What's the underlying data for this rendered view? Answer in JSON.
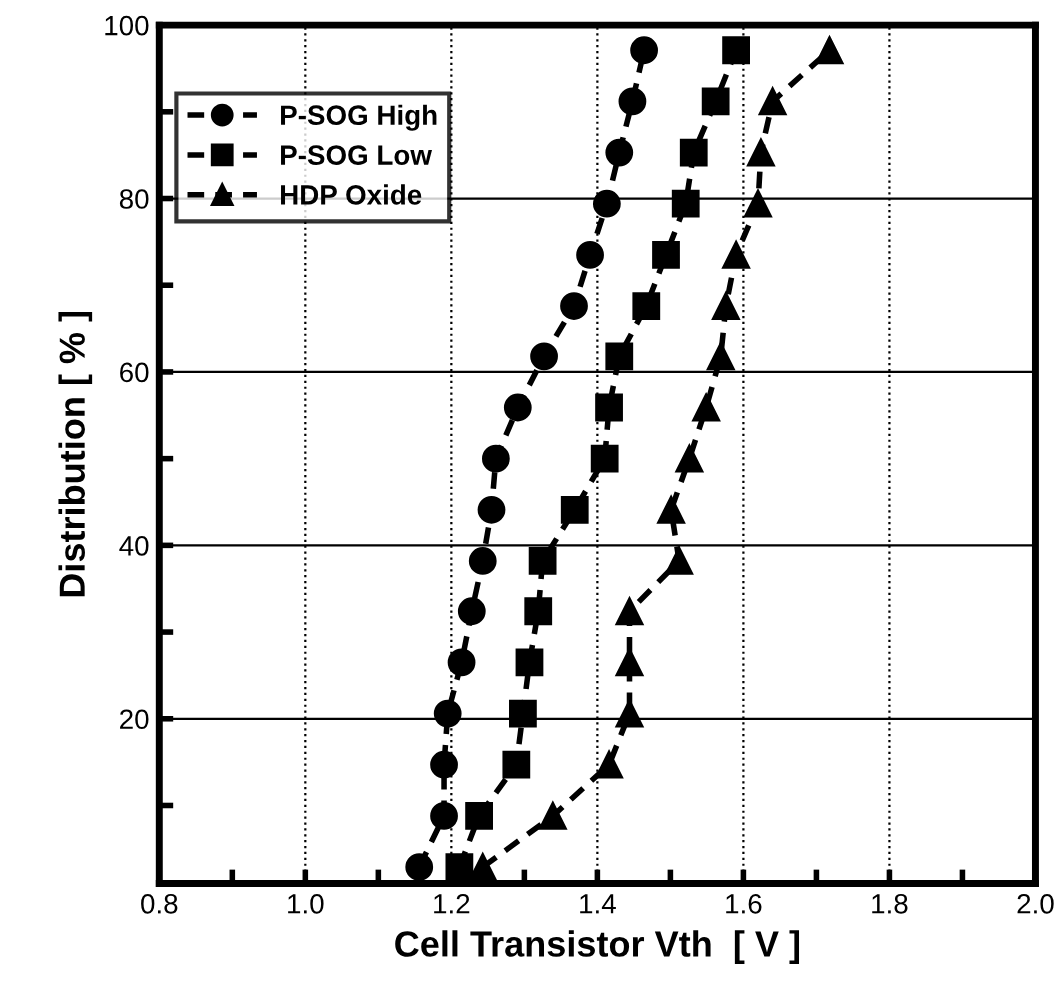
{
  "chart_data": {
    "type": "line",
    "xlabel": "Cell Transistor Vth  [ V ]",
    "ylabel": "Distribution [ % ]",
    "xlim": [
      0.8,
      2.0
    ],
    "ylim": [
      1,
      100
    ],
    "xticks": [
      0.8,
      {
        "value": 0.9,
        "label": null
      },
      {
        "value": 1.0,
        "label": "1.0"
      },
      {
        "value": 1.1,
        "label": null
      },
      1.2,
      {
        "value": 1.3,
        "label": null
      },
      1.4,
      {
        "value": 1.5,
        "label": null
      },
      1.6,
      {
        "value": 1.7,
        "label": null
      },
      1.8,
      {
        "value": 1.9,
        "label": null
      },
      {
        "value": 2.0,
        "label": "2.0"
      }
    ],
    "yticks": [
      {
        "value": 10,
        "label": null
      },
      20,
      {
        "value": 30,
        "label": null
      },
      40,
      {
        "value": 50,
        "label": null
      },
      60,
      {
        "value": 70,
        "label": null
      },
      80,
      {
        "value": 90,
        "label": null
      },
      100
    ],
    "grid": true,
    "legend": "top left",
    "line_style": "dashed",
    "series": [
      {
        "name": "P-SOG High",
        "color": "#000000",
        "marker": "circle",
        "x": [
          1.156,
          1.19,
          1.19,
          1.195,
          1.214,
          1.228,
          1.243,
          1.255,
          1.261,
          1.291,
          1.327,
          1.368,
          1.39,
          1.413,
          1.43,
          1.448,
          1.464
        ],
        "values": [
          2.9,
          8.8,
          14.7,
          20.6,
          26.5,
          32.4,
          38.2,
          44.1,
          50,
          55.9,
          61.8,
          67.6,
          73.5,
          79.4,
          85.3,
          91.2,
          97.1
        ]
      },
      {
        "name": "P-SOG Low",
        "color": "#000000",
        "marker": "square",
        "x": [
          1.211,
          1.238,
          1.289,
          1.298,
          1.307,
          1.319,
          1.325,
          1.369,
          1.41,
          1.416,
          1.43,
          1.467,
          1.494,
          1.521,
          1.532,
          1.562,
          1.59
        ],
        "values": [
          2.9,
          8.8,
          14.7,
          20.6,
          26.5,
          32.4,
          38.2,
          44.1,
          50,
          55.9,
          61.8,
          67.6,
          73.5,
          79.4,
          85.3,
          91.2,
          97.1
        ]
      },
      {
        "name": "HDP Oxide",
        "color": "#000000",
        "marker": "triangle",
        "x": [
          1.243,
          1.339,
          1.416,
          1.444,
          1.444,
          1.444,
          1.512,
          1.501,
          1.526,
          1.549,
          1.569,
          1.576,
          1.59,
          1.62,
          1.624,
          1.64,
          1.718
        ],
        "values": [
          2.9,
          8.8,
          14.7,
          20.6,
          26.5,
          32.4,
          38.2,
          44.1,
          50,
          55.9,
          61.8,
          67.6,
          73.5,
          79.4,
          85.3,
          91.2,
          97.1
        ]
      }
    ]
  }
}
